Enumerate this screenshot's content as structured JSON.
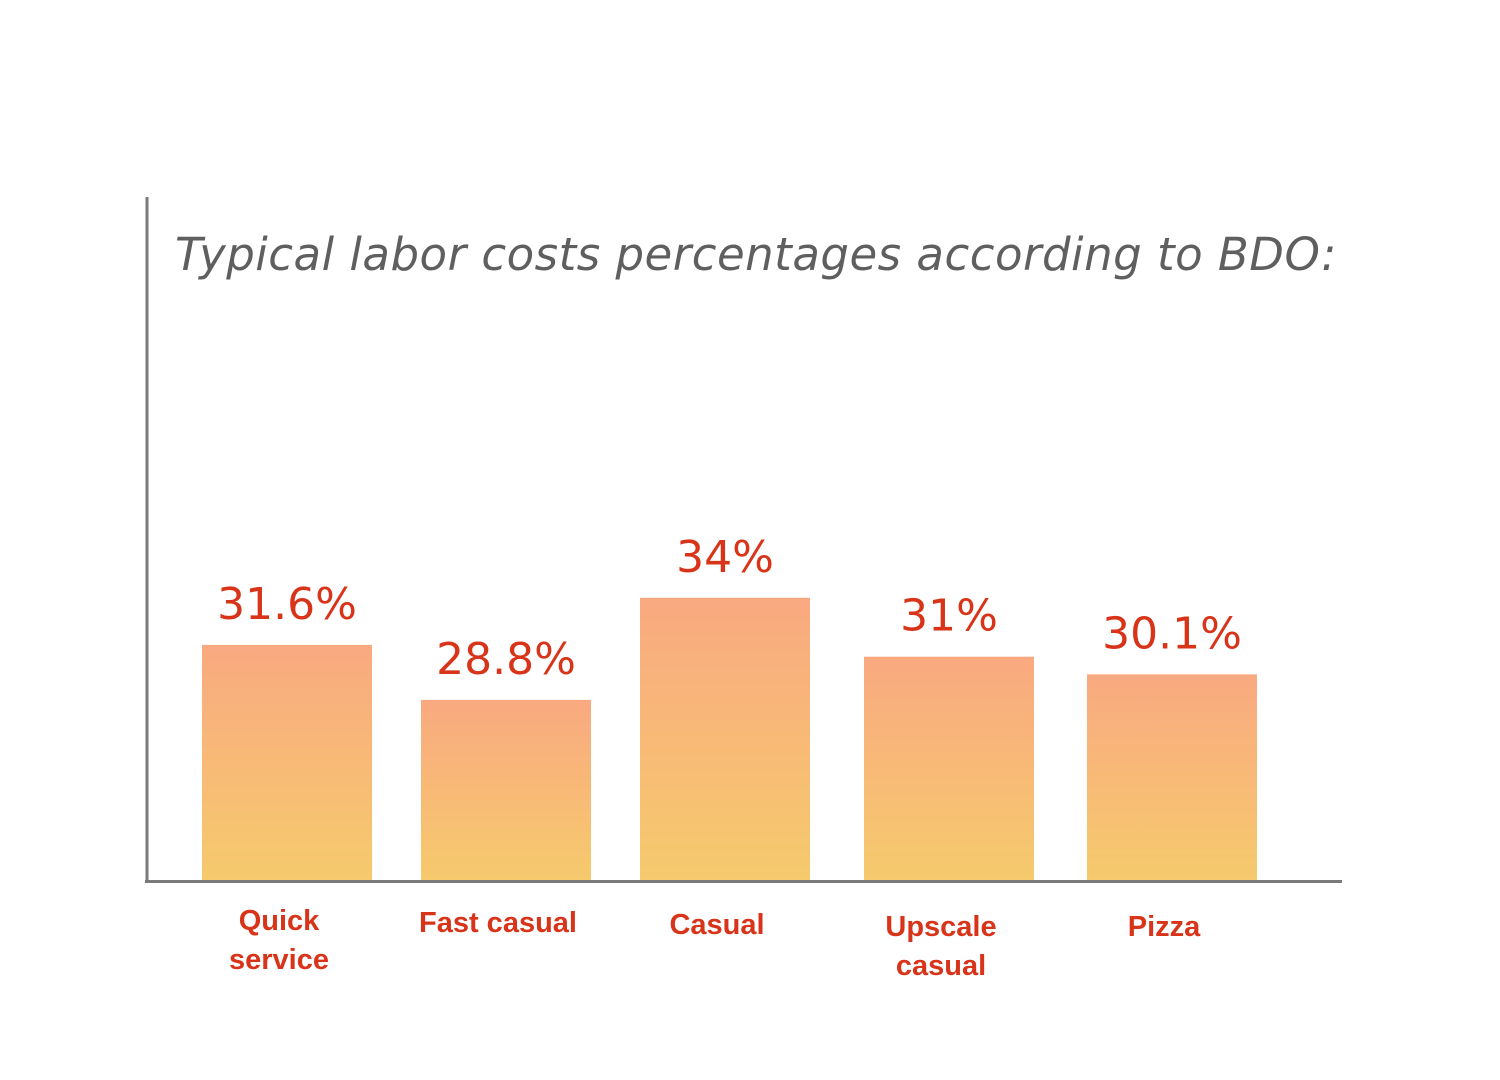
{
  "chart_data": {
    "type": "bar",
    "title": "Typical labor costs percentages according to BDO:",
    "categories": [
      "Quick service",
      "Fast casual",
      "Casual",
      "Upscale casual",
      "Pizza"
    ],
    "values": [
      31.6,
      28.8,
      34,
      31,
      30.1
    ],
    "data_labels": [
      "31.6%",
      "28.8%",
      "34%",
      "31%",
      "30.1%"
    ],
    "xlabel": "",
    "ylabel": "",
    "grid": false,
    "legend": "none",
    "colors": {
      "bar_top": "#F9A980",
      "bar_bottom": "#F6CA6D",
      "labels": "#D8341A",
      "axis": "#7A7A7A",
      "title": "#5F5F5F"
    }
  }
}
